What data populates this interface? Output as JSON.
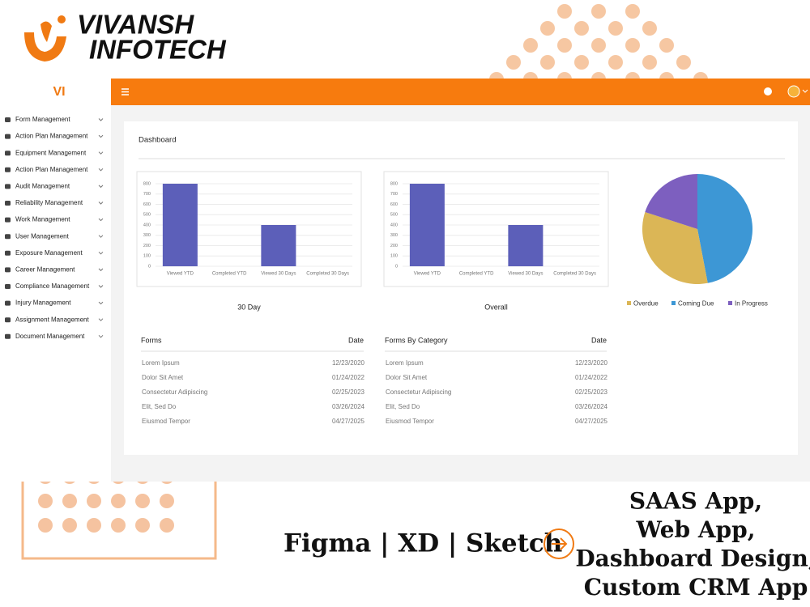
{
  "brand": {
    "name_line1": "VIVANSH",
    "name_line2": "INFOTECH",
    "short": "VI"
  },
  "sidebar": {
    "items": [
      "Form Management",
      "Action Plan Management",
      "Equipment Management",
      "Action Plan Management",
      "Audit Management",
      "Reliability Management",
      "Work Management",
      "User Management",
      "Exposure Management",
      "Career Management",
      "Compliance Management",
      "Injury Management",
      "Assignment Management",
      "Document Management"
    ]
  },
  "dashboard": {
    "title": "Dashboard"
  },
  "chart_data": [
    {
      "type": "bar",
      "title": "30 Day",
      "categories": [
        "Viewed YTD",
        "Completed YTD",
        "Viewed 30 Days",
        "Completed 30 Days"
      ],
      "values": [
        800,
        0,
        400,
        0
      ],
      "color": "#5c5fb9",
      "ylim": [
        0,
        800
      ],
      "yticks": [
        0,
        100,
        200,
        300,
        400,
        500,
        600,
        700,
        800
      ],
      "grid": true
    },
    {
      "type": "bar",
      "title": "Overall",
      "categories": [
        "Viewed YTD",
        "Completed YTD",
        "Viewed 30 Days",
        "Completed 30 Days"
      ],
      "values": [
        800,
        0,
        400,
        0
      ],
      "color": "#5c5fb9",
      "ylim": [
        0,
        800
      ],
      "yticks": [
        0,
        100,
        200,
        300,
        400,
        500,
        600,
        700,
        800
      ],
      "grid": true
    },
    {
      "type": "pie",
      "categories": [
        "Overdue",
        "Coming Due",
        "In Progress"
      ],
      "values": [
        33,
        47,
        20
      ],
      "colors": [
        "#dbb656",
        "#3d97d5",
        "#7d5fbf"
      ],
      "legend": "bottom"
    }
  ],
  "tables": [
    {
      "headers": [
        "Forms",
        "Date"
      ],
      "rows": [
        [
          "Lorem Ipsum",
          "12/23/2020"
        ],
        [
          "Dolor Sit Amet",
          "01/24/2022"
        ],
        [
          "Consectetur Adipiscing",
          "02/25/2023"
        ],
        [
          "Elit, Sed Do",
          "03/26/2024"
        ],
        [
          "Eiusmod Tempor",
          "04/27/2025"
        ]
      ]
    },
    {
      "headers": [
        "Forms By Category",
        "Date"
      ],
      "rows": [
        [
          "Lorem Ipsum",
          "12/23/2020"
        ],
        [
          "Dolor Sit Amet",
          "01/24/2022"
        ],
        [
          "Consectetur Adipiscing",
          "02/25/2023"
        ],
        [
          "Elit, Sed Do",
          "03/26/2024"
        ],
        [
          "Eiusmod Tempor",
          "04/27/2025"
        ]
      ]
    }
  ],
  "promo": {
    "tools": "Figma | XD | Sketch",
    "services": [
      "SAAS App,",
      "Web App,",
      "Dashboard Design,",
      "Custom CRM App"
    ]
  }
}
